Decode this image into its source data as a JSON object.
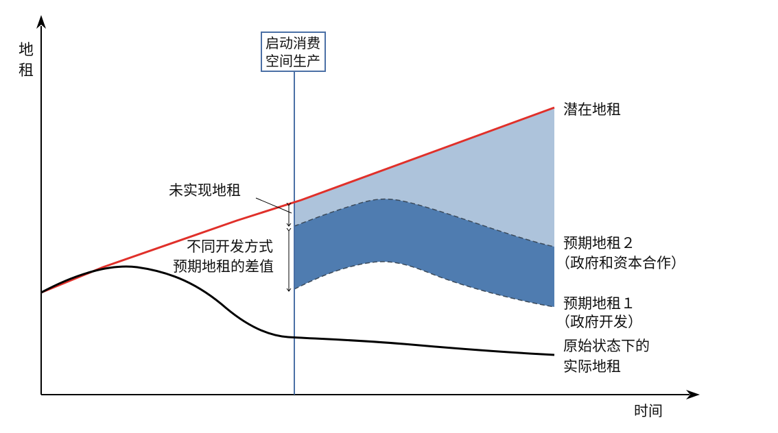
{
  "axes": {
    "y_label_line1": "地",
    "y_label_line2": "租",
    "x_label": "时间"
  },
  "marker": {
    "line1": "启动消费",
    "line2": "空间生产"
  },
  "labels": {
    "unrealized_rent": "未实现地租",
    "diff_line1": "不同开发方式",
    "diff_line2": "预期地租的差值",
    "potential_rent": "潜在地租",
    "expected2_line1": "预期地租２",
    "expected2_line2": "（政府和资本合作）",
    "expected1_line1": "预期地租１",
    "expected1_line2": "（政府开发）",
    "actual_line1": "原始状态下的",
    "actual_line2": "实际地租"
  },
  "colors": {
    "potential_line": "#e0302a",
    "actual_line": "#000000",
    "marker_line": "#4a6fa5",
    "light_band": "#adc3db",
    "dark_band": "#4f7cb0",
    "axis": "#000000"
  }
}
